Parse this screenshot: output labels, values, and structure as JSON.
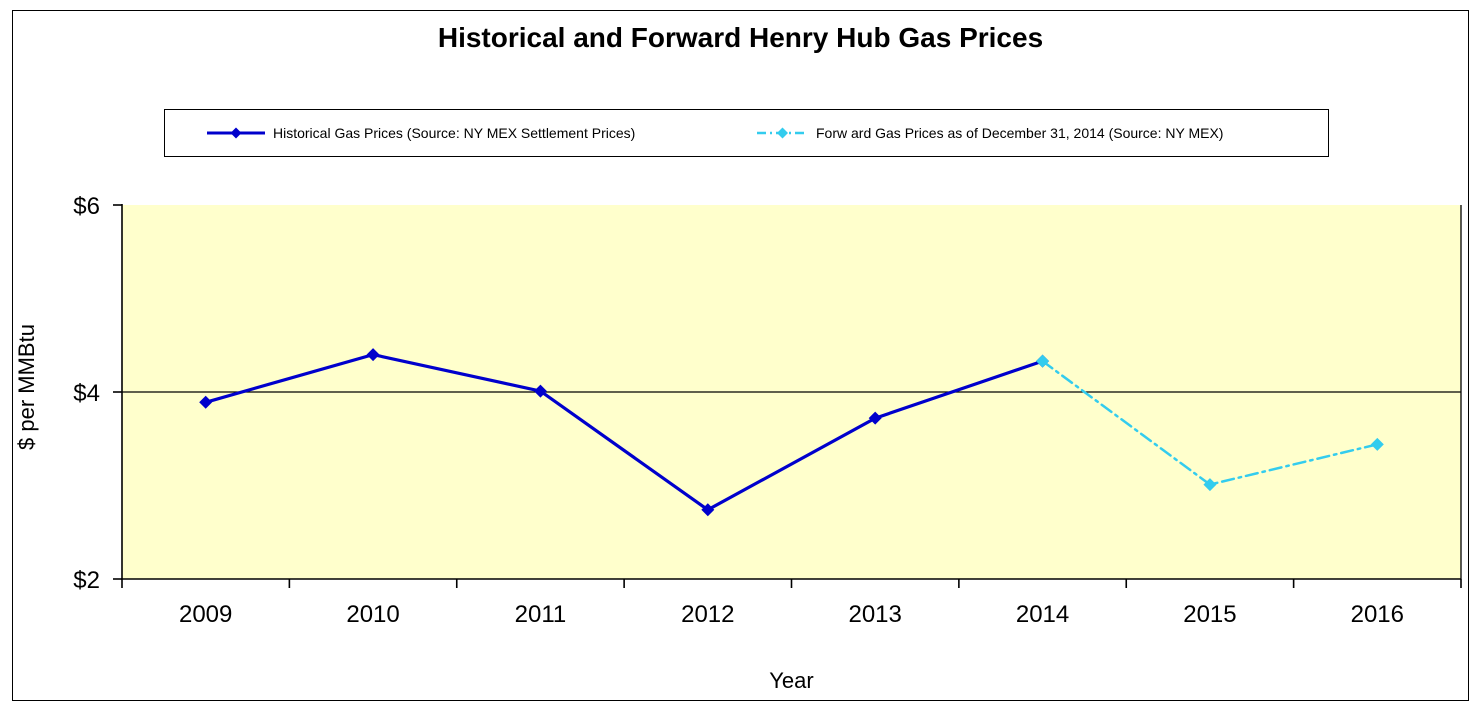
{
  "chart_data": {
    "type": "line",
    "title": "Historical and Forward Henry Hub Gas Prices",
    "xlabel": "Year",
    "ylabel": "$ per MMBtu",
    "categories": [
      "2009",
      "2010",
      "2011",
      "2012",
      "2013",
      "2014",
      "2015",
      "2016"
    ],
    "series": [
      {
        "name": "Historical Gas Prices (Source: NY MEX Settlement Prices)",
        "color": "#0000CC",
        "line_style": "solid",
        "marker": "diamond",
        "values": [
          3.89,
          4.4,
          4.01,
          2.74,
          3.72,
          4.33,
          null,
          null
        ]
      },
      {
        "name": "Forw ard Gas Prices as of December 31, 2014 (Source: NY MEX)",
        "color": "#33CCEE",
        "line_style": "dash-dot",
        "marker": "diamond",
        "values": [
          null,
          null,
          null,
          null,
          null,
          4.33,
          3.01,
          3.44
        ]
      }
    ],
    "ylim": [
      2,
      6
    ],
    "yticks": [
      {
        "value": 2,
        "label": "$2"
      },
      {
        "value": 4,
        "label": "$4"
      },
      {
        "value": 6,
        "label": "$6"
      }
    ],
    "gridline_values": [
      4
    ],
    "plot_bg_color": "#FFFFCC",
    "axis_color": "#000000",
    "legend_position": "top"
  }
}
